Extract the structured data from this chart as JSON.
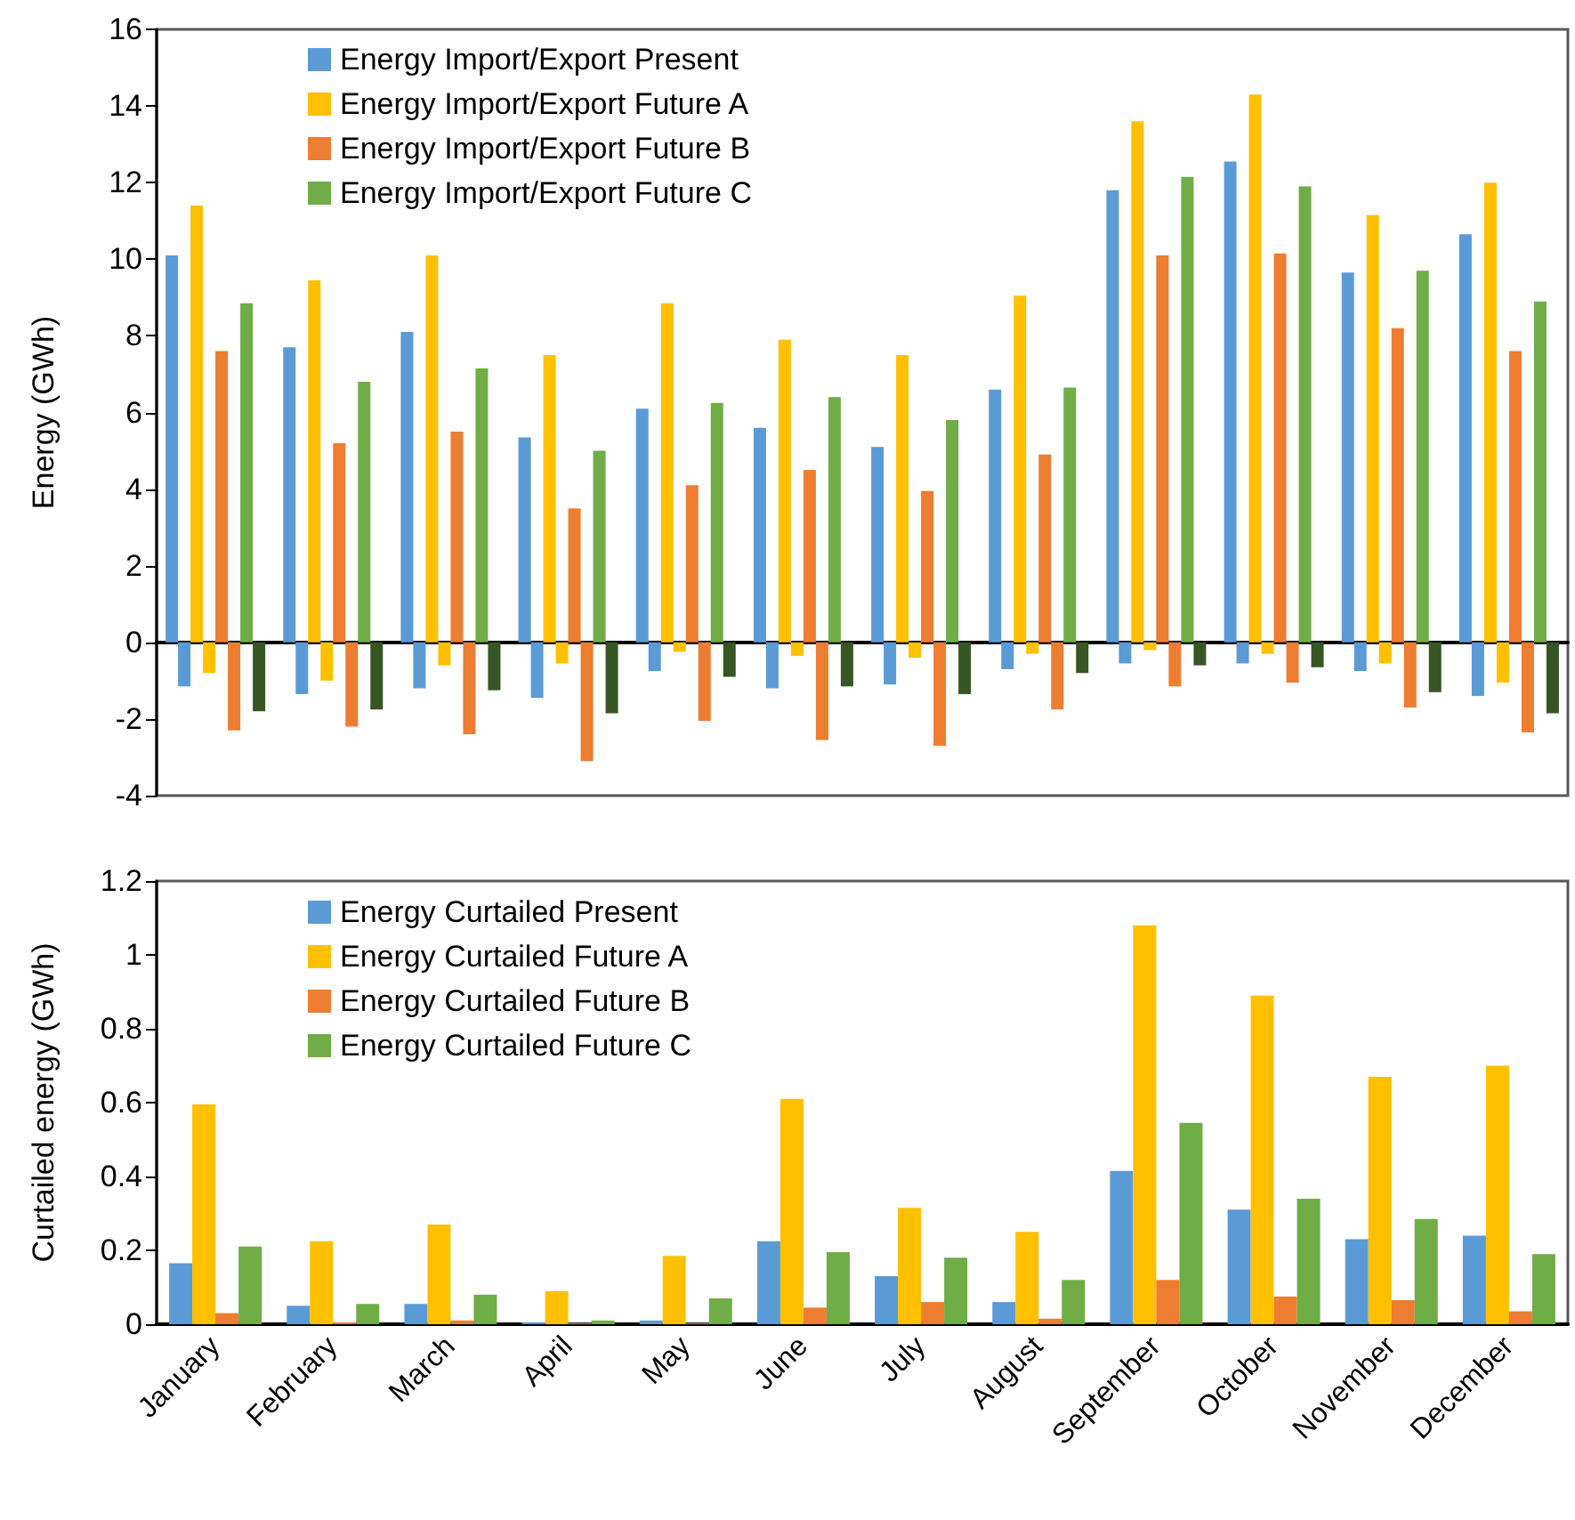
{
  "chart_data": [
    {
      "type": "bar",
      "ylabel": "Energy (GWh)",
      "categories": [
        null,
        null,
        null,
        null,
        null,
        null,
        null,
        null,
        null,
        null,
        null,
        null
      ],
      "ylim": [
        -4,
        16
      ],
      "yticks": [
        -4,
        -2,
        0,
        2,
        4,
        6,
        8,
        10,
        12,
        14,
        16
      ],
      "legend": "top",
      "series": [
        {
          "name": "Energy Import/Export Present",
          "color": "#5b9bd5",
          "values": [
            10.1,
            7.7,
            8.1,
            5.35,
            6.1,
            5.6,
            5.1,
            6.6,
            11.8,
            12.55,
            9.65,
            10.65
          ]
        },
        {
          "color": "#5b9bd5",
          "values": [
            -1.15,
            -1.35,
            -1.2,
            -1.45,
            -0.75,
            -1.2,
            -1.1,
            -0.7,
            -0.55,
            -0.55,
            -0.75,
            -1.4
          ]
        },
        {
          "name": "Energy Import/Export Future A",
          "color": "#ffc000",
          "values": [
            11.4,
            9.45,
            10.1,
            7.5,
            8.85,
            7.9,
            7.5,
            9.05,
            13.6,
            14.3,
            11.15,
            12.0
          ]
        },
        {
          "color": "#ffc000",
          "values": [
            -0.8,
            -1.0,
            -0.6,
            -0.55,
            -0.25,
            -0.35,
            -0.4,
            -0.3,
            -0.2,
            -0.3,
            -0.55,
            -1.05
          ]
        },
        {
          "name": "Energy Import/Export Future B",
          "color": "#ed7d31",
          "values": [
            7.6,
            5.2,
            5.5,
            3.5,
            4.1,
            4.5,
            3.95,
            4.9,
            10.1,
            10.15,
            8.2,
            7.6
          ]
        },
        {
          "color": "#ed7d31",
          "values": [
            -2.3,
            -2.2,
            -2.4,
            -3.1,
            -2.05,
            -2.55,
            -2.7,
            -1.75,
            -1.15,
            -1.05,
            -1.7,
            -2.35
          ]
        },
        {
          "name": "Energy Import/Export Future C",
          "color": "#70ad47",
          "values": [
            8.85,
            6.8,
            7.15,
            5.0,
            6.25,
            6.4,
            5.8,
            6.65,
            12.15,
            11.9,
            9.7,
            8.9
          ]
        },
        {
          "color": "#375623",
          "values": [
            -1.8,
            -1.75,
            -1.25,
            -1.85,
            -0.9,
            -1.15,
            -1.35,
            -0.8,
            -0.6,
            -0.65,
            -1.3,
            -1.85
          ]
        }
      ]
    },
    {
      "type": "bar",
      "ylabel": "Curtailed energy (GWh)",
      "categories": [
        "January",
        "February",
        "March",
        "April",
        "May",
        "June",
        "July",
        "August",
        "September",
        "October",
        "November",
        "December"
      ],
      "ylim": [
        0,
        1.2
      ],
      "yticks": [
        0,
        0.2,
        0.4,
        0.6,
        0.8,
        1,
        1.2
      ],
      "legend": "top",
      "series": [
        {
          "name": "Energy Curtailed Present",
          "color": "#5b9bd5",
          "values": [
            0.165,
            0.05,
            0.055,
            0.005,
            0.01,
            0.225,
            0.13,
            0.06,
            0.415,
            0.31,
            0.23,
            0.24
          ]
        },
        {
          "name": "Energy Curtailed Future A",
          "color": "#ffc000",
          "values": [
            0.595,
            0.225,
            0.27,
            0.09,
            0.185,
            0.61,
            0.315,
            0.25,
            1.08,
            0.89,
            0.67,
            0.7
          ]
        },
        {
          "name": "Energy Curtailed Future B",
          "color": "#ed7d31",
          "values": [
            0.03,
            0.005,
            0.01,
            0.003,
            0.003,
            0.045,
            0.06,
            0.015,
            0.12,
            0.075,
            0.065,
            0.035
          ]
        },
        {
          "name": "Energy Curtailed Future C",
          "color": "#70ad47",
          "values": [
            0.21,
            0.055,
            0.08,
            0.01,
            0.07,
            0.195,
            0.18,
            0.12,
            0.545,
            0.34,
            0.285,
            0.19
          ]
        }
      ]
    }
  ]
}
